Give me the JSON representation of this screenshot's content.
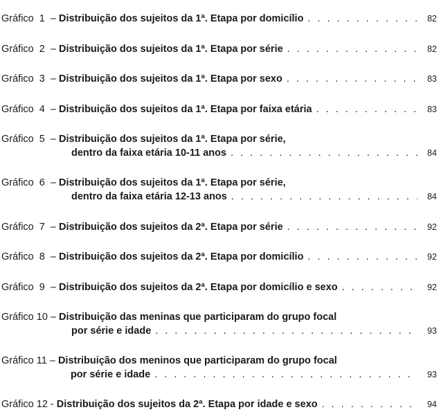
{
  "entries": [
    {
      "num": 1,
      "label": "Gráfico  1  – ",
      "title1": "Distribuição dos sujeitos da 1ª. Etapa por domicílio",
      "title2": null,
      "leaderOn": 1,
      "page": "82"
    },
    {
      "num": 2,
      "label": "Gráfico  2  – ",
      "title1": "Distribuição dos sujeitos da 1ª. Etapa por série",
      "title2": null,
      "leaderOn": 1,
      "page": "82"
    },
    {
      "num": 3,
      "label": "Gráfico  3  – ",
      "title1": "Distribuição dos sujeitos da 1ª. Etapa por sexo",
      "title2": null,
      "leaderOn": 1,
      "page": "83"
    },
    {
      "num": 4,
      "label": "Gráfico  4  – ",
      "title1": "Distribuição dos sujeitos da 1ª. Etapa por faixa etária",
      "title2": null,
      "leaderOn": 1,
      "page": "83"
    },
    {
      "num": 5,
      "label": "Gráfico  5  – ",
      "title1": "Distribuição dos sujeitos da 1ª. Etapa por série,",
      "title2": "dentro da faixa etária 10-11 anos",
      "leaderOn": 2,
      "page": "84"
    },
    {
      "num": 6,
      "label": "Gráfico  6  – ",
      "title1": "Distribuição dos sujeitos da 1ª. Etapa por série,",
      "title2": "dentro da faixa etária 12-13 anos",
      "leaderOn": 2,
      "page": "84"
    },
    {
      "num": 7,
      "label": "Gráfico  7  – ",
      "title1": "Distribuição dos sujeitos da 2ª. Etapa por série",
      "title2": null,
      "leaderOn": 1,
      "page": "92"
    },
    {
      "num": 8,
      "label": "Gráfico  8  – ",
      "title1": "Distribuição dos sujeitos da 2ª. Etapa por domicílio",
      "title2": null,
      "leaderOn": 1,
      "page": "92"
    },
    {
      "num": 9,
      "label": "Gráfico  9  – ",
      "title1": "Distribuição dos sujeitos da 2ª. Etapa por domicílio e sexo",
      "title2": null,
      "leaderOn": 1,
      "page": "92"
    },
    {
      "num": 10,
      "label": "Gráfico 10 – ",
      "title1": "Distribuição das meninas que participaram do grupo focal",
      "title2": "por série e idade",
      "leaderOn": 2,
      "page": "93"
    },
    {
      "num": 11,
      "label": "Gráfico 11 – ",
      "title1": "Distribuição dos meninos que participaram do grupo focal",
      "title2": "por série e idade",
      "leaderOn": 2,
      "page": "93"
    },
    {
      "num": 12,
      "label": "Gráfico 12 - ",
      "title1": "Distribuição dos sujeitos da 2ª. Etapa por idade e sexo",
      "title2": null,
      "leaderOn": 1,
      "page": "94"
    }
  ],
  "leaderChar": ".  .  .  .  .  .  .  .  .  .  .  .  .  .  .  .  .  .  .  .  .  .  .  .  .  .  .  .  .  ."
}
